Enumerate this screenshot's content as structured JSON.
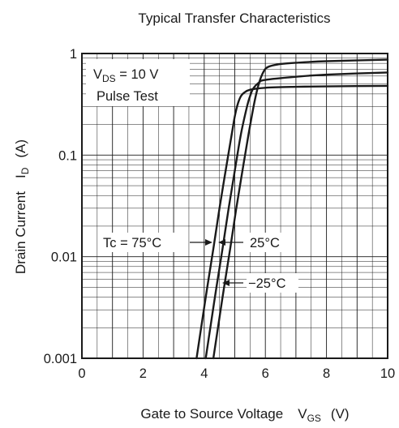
{
  "chart_data": {
    "type": "line",
    "title": "Typical Transfer Characteristics",
    "xlabel_main": "Gate to Source Voltage",
    "xlabel_sym": "V",
    "xlabel_sub": "GS",
    "xlabel_unit": "(V)",
    "ylabel_main": "Drain Current",
    "ylabel_sym": "I",
    "ylabel_sub": "D",
    "ylabel_unit": "(A)",
    "x_scale": "linear",
    "y_scale": "log",
    "xlim": [
      0,
      10
    ],
    "ylim": [
      0.001,
      1
    ],
    "x_ticks": [
      0,
      2,
      4,
      6,
      8,
      10
    ],
    "x_tick_labels": [
      "0",
      "2",
      "4",
      "6",
      "8",
      "10"
    ],
    "y_ticks": [
      0.001,
      0.01,
      0.1,
      1
    ],
    "y_tick_labels": [
      "0.001",
      "0.01",
      "0.1",
      "1"
    ],
    "grid": true,
    "condition_line1_sym": "V",
    "condition_line1_sub": "DS",
    "condition_line1_rest": " = 10 V",
    "condition_line2": "Pulse Test",
    "series": [
      {
        "name": "Tc = 75°C",
        "label": "Tc = 75°C",
        "x": [
          3.75,
          3.9,
          4.1,
          4.3,
          4.5,
          4.7,
          4.9,
          5.0,
          5.1,
          5.2,
          5.3,
          5.5,
          6.0,
          7.0,
          8.0,
          10.0
        ],
        "y": [
          0.001,
          0.002,
          0.005,
          0.012,
          0.03,
          0.07,
          0.16,
          0.24,
          0.32,
          0.38,
          0.41,
          0.44,
          0.46,
          0.47,
          0.475,
          0.48
        ]
      },
      {
        "name": "25°C",
        "label": "25°C",
        "x": [
          4.05,
          4.2,
          4.4,
          4.6,
          4.8,
          5.0,
          5.2,
          5.4,
          5.5,
          5.6,
          5.8,
          6.0,
          7.0,
          8.0,
          10.0
        ],
        "y": [
          0.001,
          0.002,
          0.005,
          0.012,
          0.03,
          0.07,
          0.16,
          0.3,
          0.38,
          0.45,
          0.52,
          0.55,
          0.59,
          0.62,
          0.65
        ]
      },
      {
        "name": "-25°C",
        "label": "−25°C",
        "x": [
          4.3,
          4.45,
          4.65,
          4.85,
          5.05,
          5.25,
          5.45,
          5.65,
          5.8,
          5.95,
          6.1,
          6.4,
          7.0,
          8.0,
          10.0
        ],
        "y": [
          0.001,
          0.002,
          0.005,
          0.012,
          0.03,
          0.07,
          0.16,
          0.34,
          0.52,
          0.67,
          0.74,
          0.78,
          0.81,
          0.84,
          0.87
        ]
      }
    ]
  }
}
